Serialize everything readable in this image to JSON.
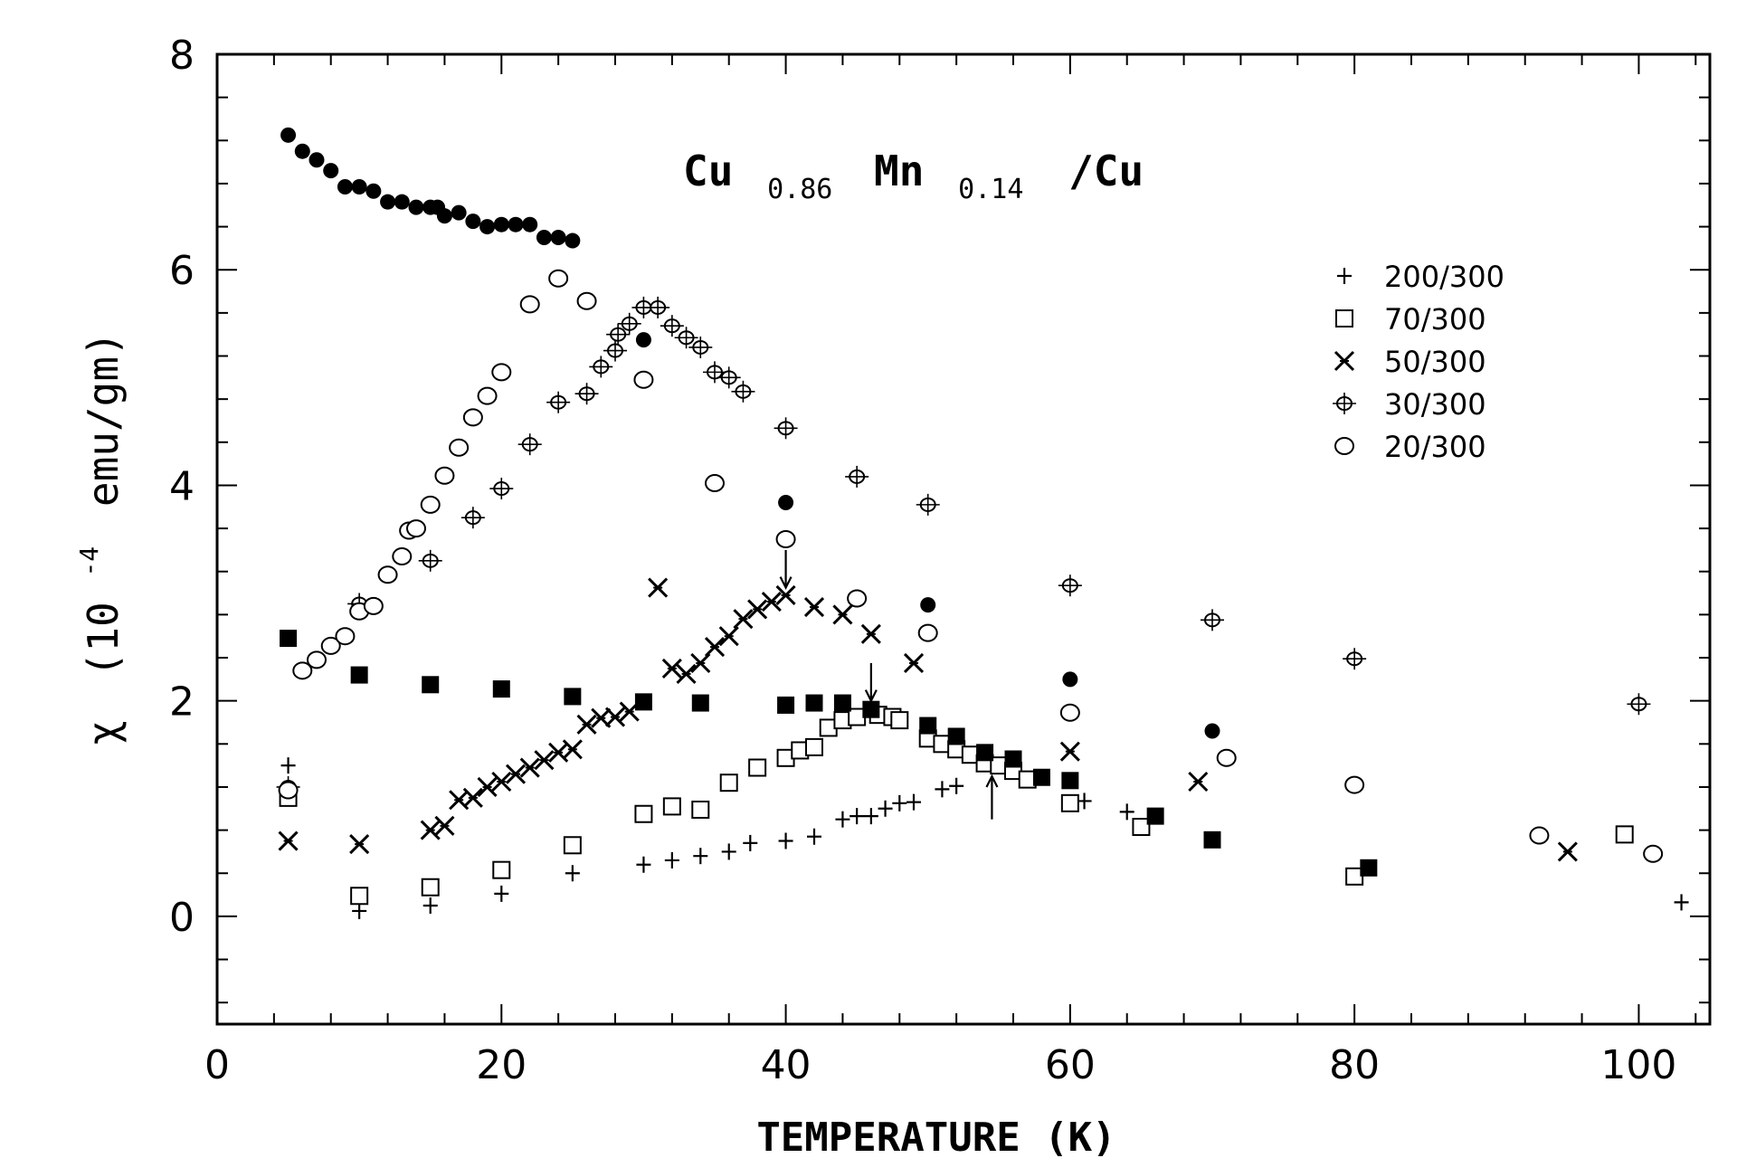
{
  "chart_data": {
    "type": "scatter",
    "title": {
      "parts": [
        {
          "text": "Cu",
          "sub": false
        },
        {
          "text": "0.86",
          "sub": true
        },
        {
          "text": "Mn",
          "sub": false
        },
        {
          "text": "0.14",
          "sub": true
        },
        {
          "text": "/Cu",
          "sub": false
        }
      ]
    },
    "xlabel": "TEMPERATURE (K)",
    "ylabel": {
      "prefix": "χ",
      "main": "(10",
      "exp": "-4",
      "rest": "emu/gm)"
    },
    "xlim": [
      0,
      105
    ],
    "ylim": [
      -1,
      8
    ],
    "xticks": [
      0,
      20,
      40,
      60,
      80,
      100
    ],
    "xtick_labels": [
      "0",
      "20",
      "40",
      "60",
      "80",
      "100"
    ],
    "yticks": [
      0,
      2,
      4,
      6,
      8
    ],
    "ytick_labels": [
      "0",
      "2",
      "4",
      "6",
      "8"
    ],
    "legend_position": "top-right",
    "legend": [
      {
        "label": "200/300",
        "marker": "plus"
      },
      {
        "label": "70/300",
        "marker": "open-square"
      },
      {
        "label": "50/300",
        "marker": "x"
      },
      {
        "label": "30/300",
        "marker": "open-circle-bar"
      },
      {
        "label": "20/300",
        "marker": "open-circle"
      }
    ],
    "series": [
      {
        "name": "200/300",
        "marker": "plus",
        "points": [
          [
            5,
            1.4
          ],
          [
            10,
            0.05
          ],
          [
            15,
            0.1
          ],
          [
            20,
            0.21
          ],
          [
            25,
            0.4
          ],
          [
            30,
            0.48
          ],
          [
            32,
            0.52
          ],
          [
            34,
            0.56
          ],
          [
            36,
            0.6
          ],
          [
            37.5,
            0.68
          ],
          [
            40,
            0.7
          ],
          [
            42,
            0.74
          ],
          [
            44,
            0.9
          ],
          [
            45,
            0.93
          ],
          [
            46,
            0.93
          ],
          [
            47,
            1.0
          ],
          [
            48,
            1.05
          ],
          [
            49,
            1.06
          ],
          [
            51,
            1.18
          ],
          [
            52,
            1.21
          ],
          [
            61,
            1.07
          ],
          [
            64,
            0.97
          ],
          [
            103,
            0.13
          ]
        ]
      },
      {
        "name": "70/300",
        "marker": "open-square",
        "points": [
          [
            5,
            1.1
          ],
          [
            10,
            0.19
          ],
          [
            15,
            0.27
          ],
          [
            20,
            0.43
          ],
          [
            25,
            0.66
          ],
          [
            30,
            0.95
          ],
          [
            32,
            1.02
          ],
          [
            34,
            0.99
          ],
          [
            36,
            1.24
          ],
          [
            38,
            1.38
          ],
          [
            40,
            1.47
          ],
          [
            41,
            1.54
          ],
          [
            42,
            1.57
          ],
          [
            43,
            1.75
          ],
          [
            44,
            1.82
          ],
          [
            45,
            1.85
          ],
          [
            46.5,
            1.87
          ],
          [
            47.5,
            1.85
          ],
          [
            48,
            1.82
          ],
          [
            50,
            1.65
          ],
          [
            51,
            1.6
          ],
          [
            52,
            1.55
          ],
          [
            53,
            1.5
          ],
          [
            54,
            1.42
          ],
          [
            55,
            1.4
          ],
          [
            56,
            1.35
          ],
          [
            57,
            1.27
          ],
          [
            60,
            1.05
          ],
          [
            65,
            0.83
          ],
          [
            80,
            0.37
          ],
          [
            99,
            0.76
          ]
        ]
      },
      {
        "name": "50/300",
        "marker": "x",
        "points": [
          [
            5,
            0.7
          ],
          [
            10,
            0.67
          ],
          [
            15,
            0.8
          ],
          [
            16,
            0.84
          ],
          [
            17,
            1.08
          ],
          [
            18,
            1.1
          ],
          [
            19,
            1.2
          ],
          [
            20,
            1.25
          ],
          [
            21,
            1.32
          ],
          [
            22,
            1.38
          ],
          [
            23,
            1.45
          ],
          [
            24,
            1.52
          ],
          [
            25,
            1.55
          ],
          [
            26,
            1.78
          ],
          [
            27,
            1.84
          ],
          [
            28,
            1.85
          ],
          [
            29,
            1.9
          ],
          [
            31,
            3.05
          ],
          [
            32,
            2.3
          ],
          [
            33,
            2.25
          ],
          [
            34,
            2.35
          ],
          [
            35,
            2.5
          ],
          [
            36,
            2.6
          ],
          [
            37,
            2.76
          ],
          [
            38,
            2.85
          ],
          [
            39,
            2.92
          ],
          [
            40,
            2.98
          ],
          [
            42,
            2.87
          ],
          [
            44,
            2.8
          ],
          [
            46,
            2.62
          ],
          [
            49,
            2.35
          ],
          [
            60,
            1.53
          ],
          [
            69,
            1.25
          ],
          [
            95,
            0.6
          ]
        ]
      },
      {
        "name": "30/300",
        "marker": "open-circle-bar",
        "points": [
          [
            5,
            1.2
          ],
          [
            10,
            2.9
          ],
          [
            15,
            3.3
          ],
          [
            18,
            3.7
          ],
          [
            20,
            3.97
          ],
          [
            22,
            4.38
          ],
          [
            24,
            4.77
          ],
          [
            26,
            4.85
          ],
          [
            27,
            5.1
          ],
          [
            28,
            5.25
          ],
          [
            28.2,
            5.4
          ],
          [
            29,
            5.5
          ],
          [
            30,
            5.65
          ],
          [
            31,
            5.65
          ],
          [
            32,
            5.48
          ],
          [
            33,
            5.37
          ],
          [
            34,
            5.28
          ],
          [
            35,
            5.05
          ],
          [
            36,
            5.0
          ],
          [
            37,
            4.87
          ],
          [
            40,
            4.53
          ],
          [
            45,
            4.08
          ],
          [
            50,
            3.82
          ],
          [
            60,
            3.07
          ],
          [
            70,
            2.75
          ],
          [
            80,
            2.39
          ],
          [
            100,
            1.97
          ]
        ]
      },
      {
        "name": "20/300",
        "marker": "open-circle",
        "points": [
          [
            5,
            1.17
          ],
          [
            6,
            2.28
          ],
          [
            7,
            2.38
          ],
          [
            8,
            2.51
          ],
          [
            9,
            2.6
          ],
          [
            10,
            2.83
          ],
          [
            11,
            2.88
          ],
          [
            12,
            3.17
          ],
          [
            13,
            3.34
          ],
          [
            13.5,
            3.58
          ],
          [
            14,
            3.6
          ],
          [
            15,
            3.82
          ],
          [
            16,
            4.09
          ],
          [
            17,
            4.35
          ],
          [
            18,
            4.63
          ],
          [
            19,
            4.83
          ],
          [
            20,
            5.05
          ],
          [
            22,
            5.68
          ],
          [
            24,
            5.92
          ],
          [
            26,
            5.71
          ],
          [
            30,
            4.98
          ],
          [
            35,
            4.02
          ],
          [
            40,
            3.5
          ],
          [
            45,
            2.95
          ],
          [
            50,
            2.63
          ],
          [
            60,
            1.89
          ],
          [
            71,
            1.47
          ],
          [
            80,
            1.22
          ],
          [
            93,
            0.75
          ],
          [
            101,
            0.58
          ]
        ]
      },
      {
        "name": "filled-circle",
        "marker": "filled-circle",
        "points": [
          [
            5,
            7.25
          ],
          [
            6,
            7.1
          ],
          [
            7,
            7.02
          ],
          [
            8,
            6.92
          ],
          [
            9,
            6.77
          ],
          [
            10,
            6.77
          ],
          [
            11,
            6.73
          ],
          [
            12,
            6.63
          ],
          [
            13,
            6.63
          ],
          [
            14,
            6.58
          ],
          [
            15,
            6.58
          ],
          [
            15.5,
            6.58
          ],
          [
            16,
            6.5
          ],
          [
            17,
            6.53
          ],
          [
            18,
            6.45
          ],
          [
            19,
            6.4
          ],
          [
            20,
            6.42
          ],
          [
            21,
            6.42
          ],
          [
            22,
            6.42
          ],
          [
            23,
            6.3
          ],
          [
            24,
            6.3
          ],
          [
            25,
            6.27
          ],
          [
            30,
            5.35
          ],
          [
            40,
            3.84
          ],
          [
            50,
            2.89
          ],
          [
            60,
            2.2
          ],
          [
            70,
            1.72
          ]
        ]
      },
      {
        "name": "filled-square",
        "marker": "filled-square",
        "points": [
          [
            5,
            2.58
          ],
          [
            10,
            2.24
          ],
          [
            15,
            2.15
          ],
          [
            20,
            2.11
          ],
          [
            25,
            2.04
          ],
          [
            30,
            1.99
          ],
          [
            34,
            1.98
          ],
          [
            40,
            1.96
          ],
          [
            42,
            1.98
          ],
          [
            44,
            1.98
          ],
          [
            46,
            1.92
          ],
          [
            50,
            1.77
          ],
          [
            52,
            1.67
          ],
          [
            54,
            1.52
          ],
          [
            56,
            1.46
          ],
          [
            58,
            1.29
          ],
          [
            60,
            1.26
          ],
          [
            66,
            0.93
          ],
          [
            70,
            0.71
          ],
          [
            81,
            0.45
          ]
        ]
      }
    ],
    "arrows": [
      {
        "x": 40,
        "direction": "down",
        "y_from": 3.4,
        "y_to": 3.05
      },
      {
        "x": 46,
        "direction": "down",
        "y_from": 2.35,
        "y_to": 2.0
      },
      {
        "x": 54.5,
        "direction": "up",
        "y_from": 0.9,
        "y_to": 1.3
      }
    ]
  }
}
